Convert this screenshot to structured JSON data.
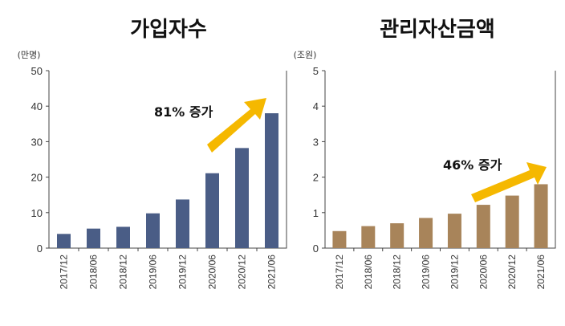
{
  "chart_data": [
    {
      "type": "bar",
      "title": "가입자수",
      "unit": "(만명)",
      "categories": [
        "2017/12",
        "2018/06",
        "2018/12",
        "2019/06",
        "2019/12",
        "2020/06",
        "2020/12",
        "2021/06"
      ],
      "values": [
        4,
        5.5,
        6,
        9.8,
        13.7,
        21.1,
        28.2,
        38
      ],
      "ylim": [
        0,
        50
      ],
      "yticks": [
        "0",
        "10",
        "20",
        "30",
        "40",
        "50"
      ],
      "bar_color": "#4a5d86",
      "annotation": {
        "text": "81% 증가",
        "arrow_color": "#f5b800"
      },
      "grid": false
    },
    {
      "type": "bar",
      "title": "관리자산금액",
      "unit": "(조원)",
      "categories": [
        "2017/12",
        "2018/06",
        "2018/12",
        "2019/06",
        "2019/12",
        "2020/06",
        "2020/12",
        "2021/06"
      ],
      "values": [
        0.48,
        0.62,
        0.7,
        0.85,
        0.97,
        1.22,
        1.48,
        1.8
      ],
      "ylim": [
        0,
        5
      ],
      "yticks": [
        "0",
        "1",
        "2",
        "3",
        "4",
        "5"
      ],
      "bar_color": "#a8845a",
      "annotation": {
        "text": "46% 증가",
        "arrow_color": "#f5b800"
      },
      "grid": false
    }
  ]
}
